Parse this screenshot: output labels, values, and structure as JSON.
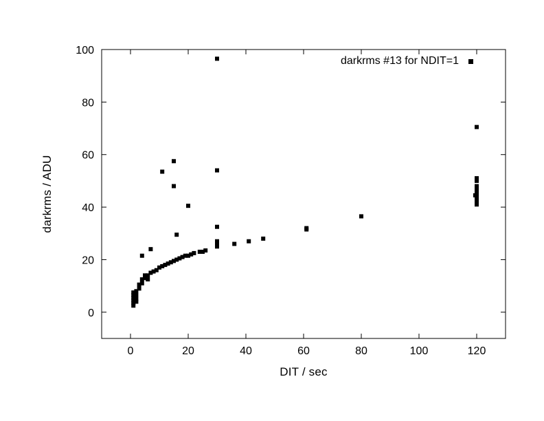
{
  "chart_data": {
    "type": "scatter",
    "title": "darkrms #13 for NDIT=1",
    "xlabel": "DIT / sec",
    "ylabel": "darkrms / ADU",
    "xlim": [
      -10,
      130
    ],
    "ylim": [
      -10,
      100
    ],
    "xticks": [
      0,
      20,
      40,
      60,
      80,
      100,
      120
    ],
    "yticks": [
      0,
      20,
      40,
      60,
      80,
      100
    ],
    "grid": false,
    "legend_position": "top-right-inside",
    "marker": "filled-square",
    "marker_size": 6,
    "marker_color": "#000000",
    "axis_color": "#000000",
    "background_color": "#ffffff",
    "series": [
      {
        "name": "darkrms #13 for NDIT=1",
        "points": [
          [
            1,
            2.5
          ],
          [
            1,
            3.5
          ],
          [
            1,
            4.5
          ],
          [
            1,
            5.5
          ],
          [
            1,
            6.5
          ],
          [
            1,
            7.5
          ],
          [
            2,
            4
          ],
          [
            2,
            5
          ],
          [
            2,
            6.5
          ],
          [
            2,
            8
          ],
          [
            3,
            9
          ],
          [
            3,
            10.5
          ],
          [
            4,
            11
          ],
          [
            4,
            12.5
          ],
          [
            4,
            21.5
          ],
          [
            5,
            13
          ],
          [
            5,
            14
          ],
          [
            6,
            12.5
          ],
          [
            6,
            14
          ],
          [
            7,
            15
          ],
          [
            7,
            24
          ],
          [
            8,
            15.5
          ],
          [
            9,
            16
          ],
          [
            10,
            17
          ],
          [
            11,
            17.5
          ],
          [
            11,
            53.5
          ],
          [
            12,
            18
          ],
          [
            13,
            18.5
          ],
          [
            14,
            19
          ],
          [
            15,
            19.5
          ],
          [
            15,
            48
          ],
          [
            15,
            57.5
          ],
          [
            16,
            20
          ],
          [
            16,
            29.5
          ],
          [
            17,
            20.5
          ],
          [
            18,
            21
          ],
          [
            19,
            21.5
          ],
          [
            20,
            21.5
          ],
          [
            20,
            40.5
          ],
          [
            21,
            22
          ],
          [
            22,
            22.5
          ],
          [
            24,
            23
          ],
          [
            25,
            23
          ],
          [
            26,
            23.5
          ],
          [
            30,
            25
          ],
          [
            30,
            25.5
          ],
          [
            30,
            26
          ],
          [
            30,
            26.5
          ],
          [
            30,
            27
          ],
          [
            30,
            32.5
          ],
          [
            30,
            54
          ],
          [
            30,
            96.5
          ],
          [
            36,
            26
          ],
          [
            41,
            27
          ],
          [
            46,
            28
          ],
          [
            61,
            31.5
          ],
          [
            61,
            32
          ],
          [
            80,
            36.5
          ],
          [
            120,
            70.5
          ],
          [
            120,
            51
          ],
          [
            120,
            50
          ],
          [
            120,
            41
          ],
          [
            120,
            42
          ],
          [
            120,
            43
          ],
          [
            120,
            44
          ],
          [
            119.5,
            44.5
          ],
          [
            120,
            45
          ],
          [
            120,
            46
          ],
          [
            120,
            47
          ],
          [
            120,
            48
          ]
        ]
      }
    ]
  }
}
